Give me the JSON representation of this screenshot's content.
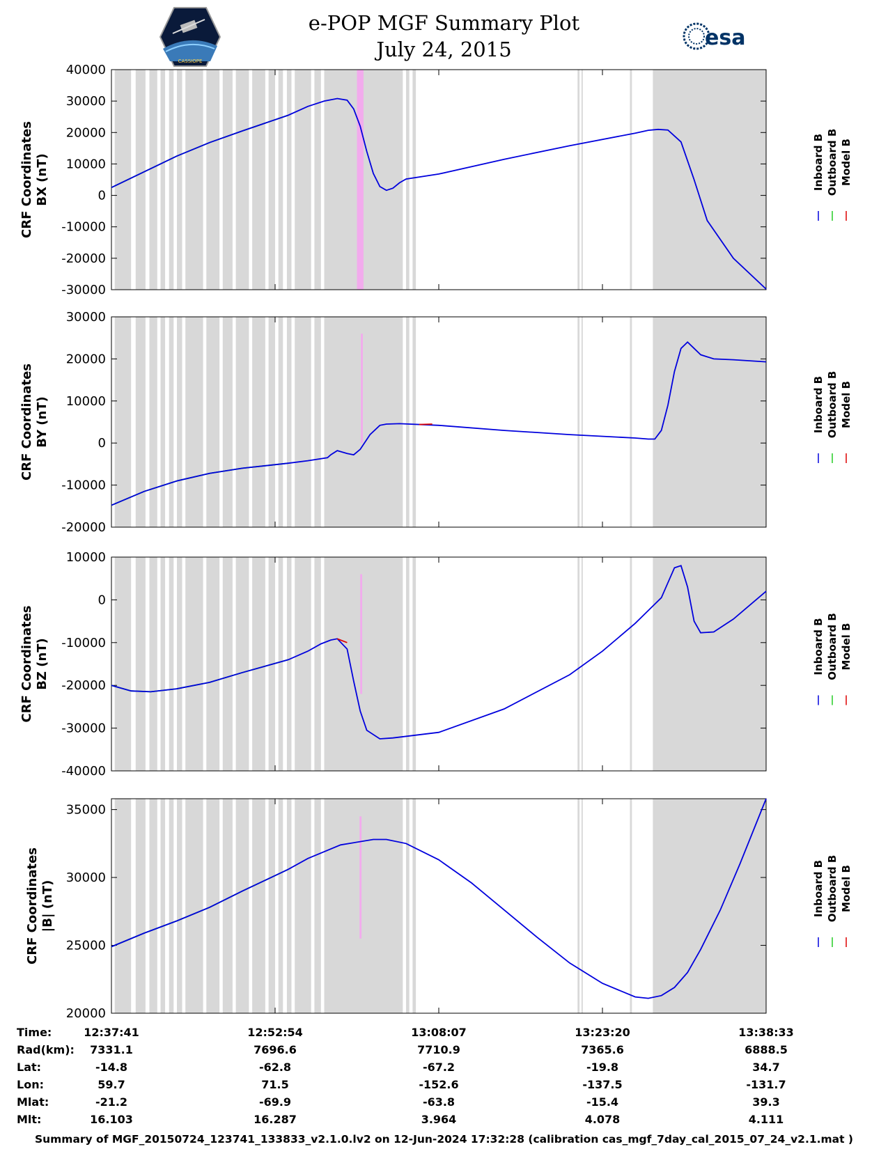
{
  "header": {
    "title_line1": "e-POP MGF Summary Plot",
    "title_line2": "July 24, 2015",
    "left_logo_text": "CASSIOPE",
    "right_logo_text": "esa"
  },
  "colors": {
    "inboard": "#0000dd",
    "outboard": "#22cc22",
    "model": "#dd0000",
    "gap_shading": "#d8d8d8",
    "pink_band": "#f5a6f0"
  },
  "legend": [
    "Inboard B",
    "Outboard B",
    "Model B"
  ],
  "chart_data": [
    {
      "type": "line",
      "ylabel_line1": "CRF Coordinates",
      "ylabel_line2": "BX (nT)",
      "ylim": [
        -30000,
        40000
      ],
      "yticks": [
        "40000",
        "30000",
        "20000",
        "10000",
        "0",
        "-10000",
        "-20000",
        "-30000"
      ],
      "ytick_values": [
        40000,
        30000,
        20000,
        10000,
        0,
        -10000,
        -20000,
        -30000
      ],
      "outboard_until": 0.27,
      "series": [
        {
          "name": "Inboard B",
          "x": [
            0,
            0.05,
            0.1,
            0.15,
            0.2,
            0.27,
            0.3,
            0.325,
            0.345,
            0.36,
            0.37,
            0.38,
            0.39,
            0.4,
            0.41,
            0.42,
            0.43,
            0.44,
            0.45,
            0.5,
            0.6,
            0.7,
            0.8,
            0.82,
            0.835,
            0.85,
            0.87,
            0.89,
            0.91,
            0.95,
            1.0
          ],
          "values": [
            2500,
            7500,
            12500,
            16800,
            20500,
            25500,
            28300,
            30000,
            30800,
            30300,
            27500,
            22000,
            14000,
            7000,
            2800,
            1600,
            2300,
            4000,
            5200,
            6800,
            11500,
            15800,
            19800,
            20700,
            21000,
            20800,
            17000,
            5000,
            -8000,
            -20000,
            -29800
          ]
        },
        {
          "name": "Outboard B",
          "x": [
            0,
            0.05,
            0.1,
            0.15,
            0.2,
            0.27
          ],
          "values": [
            2500,
            7500,
            12500,
            16800,
            20500,
            25500
          ]
        },
        {
          "name": "Model B",
          "x": [],
          "values": []
        }
      ]
    },
    {
      "type": "line",
      "ylabel_line1": "CRF Coordinates",
      "ylabel_line2": "BY (nT)",
      "ylim": [
        -20000,
        30000
      ],
      "yticks": [
        "30000",
        "20000",
        "10000",
        "0",
        "-10000",
        "-20000"
      ],
      "ytick_values": [
        30000,
        20000,
        10000,
        0,
        -10000,
        -20000
      ],
      "outboard_until": 0.27,
      "series": [
        {
          "name": "Inboard B",
          "x": [
            0,
            0.05,
            0.1,
            0.15,
            0.2,
            0.27,
            0.3,
            0.33,
            0.335,
            0.345,
            0.36,
            0.37,
            0.38,
            0.395,
            0.41,
            0.42,
            0.44,
            0.5,
            0.6,
            0.7,
            0.8,
            0.82,
            0.83,
            0.84,
            0.85,
            0.86,
            0.87,
            0.88,
            0.89,
            0.9,
            0.92,
            0.95,
            1.0
          ],
          "values": [
            -14800,
            -11500,
            -9000,
            -7200,
            -6000,
            -4800,
            -4200,
            -3500,
            -2800,
            -1800,
            -2500,
            -2800,
            -1500,
            2000,
            4200,
            4500,
            4600,
            4200,
            3000,
            2000,
            1200,
            950,
            950,
            3000,
            9000,
            17000,
            22500,
            24000,
            22500,
            21000,
            20000,
            19800,
            19300
          ]
        },
        {
          "name": "Outboard B",
          "x": [
            0,
            0.05,
            0.1,
            0.15,
            0.2,
            0.27
          ],
          "values": [
            -14800,
            -11500,
            -9000,
            -7200,
            -6000,
            -4800
          ]
        },
        {
          "name": "Model B",
          "x": [
            0.47,
            0.49
          ],
          "values": [
            4400,
            4500
          ]
        }
      ]
    },
    {
      "type": "line",
      "ylabel_line1": "CRF Coordinates",
      "ylabel_line2": "BZ (nT)",
      "ylim": [
        -40000,
        10000
      ],
      "yticks": [
        "10000",
        "0",
        "-10000",
        "-20000",
        "-30000",
        "-40000"
      ],
      "ytick_values": [
        10000,
        0,
        -10000,
        -20000,
        -30000,
        -40000
      ],
      "outboard_until": 0.27,
      "series": [
        {
          "name": "Inboard B",
          "x": [
            0,
            0.03,
            0.06,
            0.1,
            0.15,
            0.2,
            0.27,
            0.3,
            0.32,
            0.335,
            0.345,
            0.36,
            0.37,
            0.38,
            0.39,
            0.41,
            0.43,
            0.5,
            0.6,
            0.7,
            0.75,
            0.8,
            0.83,
            0.84,
            0.85,
            0.86,
            0.87,
            0.88,
            0.89,
            0.9,
            0.92,
            0.95,
            1.0
          ],
          "values": [
            -20000,
            -21300,
            -21500,
            -20800,
            -19300,
            -17000,
            -14000,
            -12000,
            -10300,
            -9400,
            -9100,
            -11500,
            -19000,
            -26000,
            -30500,
            -32500,
            -32300,
            -31000,
            -25500,
            -17500,
            -12000,
            -5500,
            -1000,
            500,
            4000,
            7500,
            8000,
            3000,
            -5000,
            -7700,
            -7500,
            -4500,
            2000
          ]
        },
        {
          "name": "Outboard B",
          "x": [
            0,
            0.03,
            0.06,
            0.1,
            0.15,
            0.2,
            0.27
          ],
          "values": [
            -20000,
            -21300,
            -21500,
            -20800,
            -19300,
            -17000,
            -14000
          ]
        },
        {
          "name": "Model B",
          "x": [
            0.345,
            0.36
          ],
          "values": [
            -9100,
            -10000
          ]
        }
      ]
    },
    {
      "type": "line",
      "ylabel_line1": "CRF Coordinates",
      "ylabel_line2": "|B| (nT)",
      "ylim": [
        20000,
        35800
      ],
      "yticks": [
        "35000",
        "30000",
        "25000",
        "20000"
      ],
      "ytick_values": [
        35000,
        30000,
        25000,
        20000
      ],
      "outboard_until": 0.27,
      "series": [
        {
          "name": "Inboard B",
          "x": [
            0,
            0.05,
            0.1,
            0.15,
            0.2,
            0.27,
            0.3,
            0.35,
            0.4,
            0.42,
            0.45,
            0.5,
            0.55,
            0.6,
            0.65,
            0.7,
            0.75,
            0.8,
            0.82,
            0.84,
            0.86,
            0.88,
            0.9,
            0.93,
            0.96,
            1.0
          ],
          "values": [
            24900,
            25900,
            26800,
            27800,
            29000,
            30600,
            31400,
            32400,
            32800,
            32800,
            32500,
            31300,
            29600,
            27600,
            25600,
            23700,
            22200,
            21200,
            21100,
            21300,
            21900,
            23000,
            24700,
            27600,
            31000,
            35800
          ]
        },
        {
          "name": "Outboard B",
          "x": [
            0,
            0.05,
            0.1,
            0.15,
            0.2,
            0.27
          ],
          "values": [
            24900,
            25900,
            26800,
            27800,
            29000,
            30600
          ]
        },
        {
          "name": "Model B",
          "x": [],
          "values": []
        }
      ]
    }
  ],
  "shading": {
    "gap_regions": [
      [
        0.005,
        0.03
      ],
      [
        0.037,
        0.052
      ],
      [
        0.058,
        0.07
      ],
      [
        0.075,
        0.082
      ],
      [
        0.088,
        0.095
      ],
      [
        0.1,
        0.108
      ],
      [
        0.113,
        0.14
      ],
      [
        0.145,
        0.165
      ],
      [
        0.17,
        0.185
      ],
      [
        0.19,
        0.21
      ],
      [
        0.215,
        0.235
      ],
      [
        0.24,
        0.25
      ],
      [
        0.255,
        0.262
      ],
      [
        0.268,
        0.275
      ],
      [
        0.28,
        0.305
      ],
      [
        0.31,
        0.32
      ],
      [
        0.325,
        0.445
      ],
      [
        0.45,
        0.455
      ],
      [
        0.46,
        0.465
      ],
      [
        0.712,
        0.715
      ],
      [
        0.718,
        0.72
      ],
      [
        0.792,
        0.795
      ],
      [
        0.827,
        1.0
      ]
    ],
    "pink_bands": [
      {
        "panel": 0,
        "x0": 0.375,
        "x1": 0.385,
        "y0": 40000,
        "y1": -30000
      },
      {
        "panel": 1,
        "x0": 0.381,
        "x1": 0.384,
        "y0": 26000,
        "y1": 0
      },
      {
        "panel": 2,
        "x0": 0.38,
        "x1": 0.383,
        "y0": 6000,
        "y1": -22000
      },
      {
        "panel": 3,
        "x0": 0.379,
        "x1": 0.382,
        "y0": 34500,
        "y1": 25500
      }
    ]
  },
  "time_table": {
    "row_labels": [
      "Time:",
      "Rad(km):",
      "Lat:",
      "Lon:",
      "Mlat:",
      "Mlt:"
    ],
    "columns": [
      {
        "pos": 0.0,
        "values": [
          "12:37:41",
          "7331.1",
          "-14.8",
          "59.7",
          "-21.2",
          "16.103"
        ]
      },
      {
        "pos": 0.25,
        "values": [
          "12:52:54",
          "7696.6",
          "-62.8",
          "71.5",
          "-69.9",
          "16.287"
        ]
      },
      {
        "pos": 0.5,
        "values": [
          "13:08:07",
          "7710.9",
          "-67.2",
          "-152.6",
          "-63.8",
          "3.964"
        ]
      },
      {
        "pos": 0.75,
        "values": [
          "13:23:20",
          "7365.6",
          "-19.8",
          "-137.5",
          "-15.4",
          "4.078"
        ]
      },
      {
        "pos": 1.0,
        "values": [
          "13:38:33",
          "6888.5",
          "34.7",
          "-131.7",
          "39.3",
          "4.111"
        ]
      }
    ]
  },
  "footer": "Summary of MGF_20150724_123741_133833_v2.1.0.lv2 on 12-Jun-2024 17:32:28 (calibration cas_mgf_7day_cal_2015_07_24_v2.1.mat )"
}
